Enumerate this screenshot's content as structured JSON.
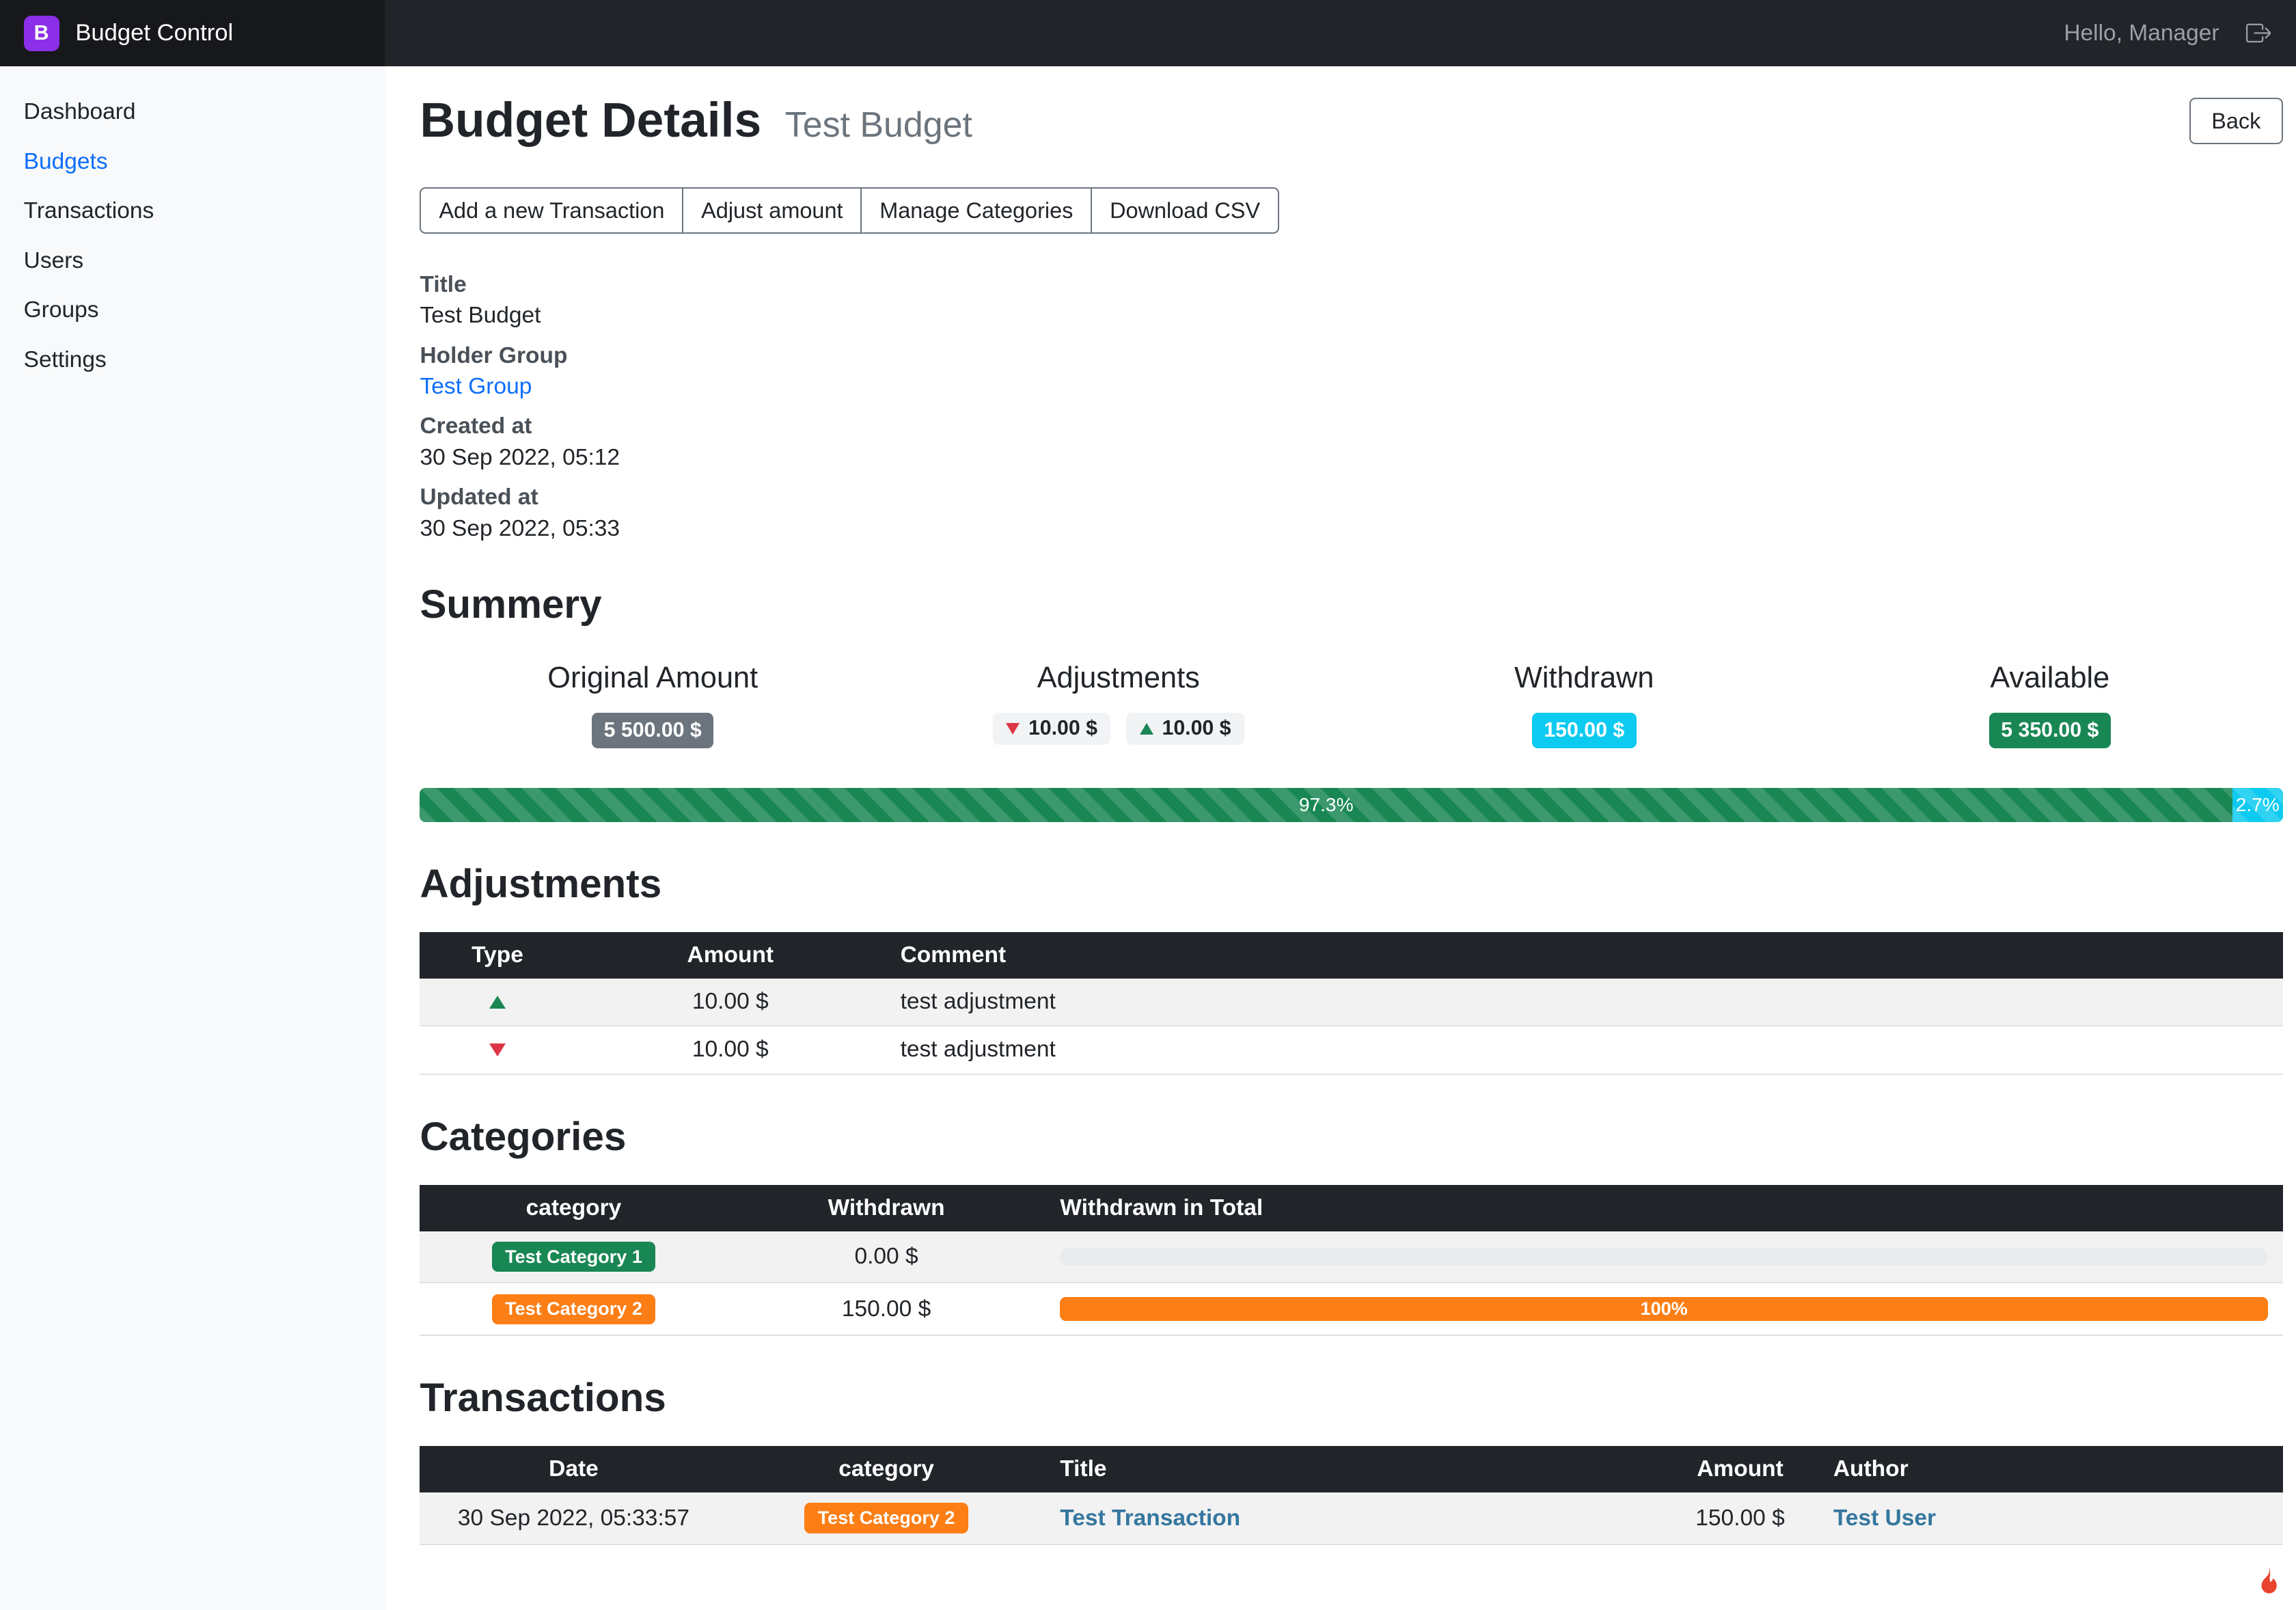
{
  "colors": {
    "brand_purple": "#8b2fe8",
    "primary_link": "#0d6efd",
    "table_link": "#35779f",
    "success_green": "#198754",
    "danger_red": "#dc3545",
    "info_cyan": "#0dcaf0",
    "warning_orange": "#fd7e14",
    "secondary_gray": "#6c757d",
    "header_dark": "#212529"
  },
  "navbar": {
    "logo_letter": "B",
    "brand": "Budget Control",
    "greeting": "Hello, Manager",
    "logout_icon": "box-arrow-right"
  },
  "sidebar": {
    "items": [
      {
        "label": "Dashboard",
        "active": false
      },
      {
        "label": "Budgets",
        "active": true
      },
      {
        "label": "Transactions",
        "active": false
      },
      {
        "label": "Users",
        "active": false
      },
      {
        "label": "Groups",
        "active": false
      },
      {
        "label": "Settings",
        "active": false
      }
    ]
  },
  "page": {
    "title": "Budget Details",
    "subtitle": "Test Budget",
    "back_button": "Back"
  },
  "actions": {
    "add_transaction": "Add a new Transaction",
    "adjust_amount": "Adjust amount",
    "manage_categories": "Manage Categories",
    "download_csv": "Download CSV"
  },
  "details": [
    {
      "label": "Title",
      "value": "Test Budget"
    },
    {
      "label": "Holder Group",
      "value": "Test Group"
    },
    {
      "label": "Created at",
      "value": "30 Sep 2022, 05:12"
    },
    {
      "label": "Updated at",
      "value": "30 Sep 2022, 05:33"
    }
  ],
  "summary": {
    "heading": "Summery",
    "original": {
      "label": "Original Amount",
      "value": "5 500.00 $",
      "color": "#6c757d"
    },
    "adjustments": {
      "label": "Adjustments",
      "decrease": "10.00 $",
      "increase": "10.00 $"
    },
    "withdrawn": {
      "label": "Withdrawn",
      "value": "150.00 $",
      "color": "#0dcaf0"
    },
    "available": {
      "label": "Available",
      "value": "5 350.00 $",
      "color": "#198754"
    },
    "progress": [
      {
        "label": "97.3%",
        "pct": 97.3,
        "color": "#198754"
      },
      {
        "label": "2.7%",
        "pct": 2.7,
        "color": "#0dcaf0"
      }
    ]
  },
  "adjustments_table": {
    "heading": "Adjustments",
    "columns": [
      "Type",
      "Amount",
      "Comment"
    ],
    "rows": [
      {
        "type": "increase",
        "amount": "10.00 $",
        "comment": "test adjustment"
      },
      {
        "type": "decrease",
        "amount": "10.00 $",
        "comment": "test adjustment"
      }
    ]
  },
  "categories_table": {
    "heading": "Categories",
    "columns": [
      "category",
      "Withdrawn",
      "Withdrawn in Total"
    ],
    "rows": [
      {
        "name": "Test Category 1",
        "badge_color": "#198754",
        "withdrawn": "0.00 $",
        "pct": 0,
        "pct_label": ""
      },
      {
        "name": "Test Category 2",
        "badge_color": "#fd7e14",
        "withdrawn": "150.00 $",
        "pct": 100,
        "pct_label": "100%",
        "bar_color": "#fd7e14"
      }
    ]
  },
  "transactions_table": {
    "heading": "Transactions",
    "columns": [
      "Date",
      "category",
      "Title",
      "Amount",
      "Author"
    ],
    "rows": [
      {
        "date": "30 Sep 2022, 05:33:57",
        "category": "Test Category 2",
        "category_color": "#fd7e14",
        "title": "Test Transaction",
        "amount": "150.00 $",
        "author": "Test User"
      }
    ]
  },
  "footer": {
    "framework_icon": "codeigniter-flame"
  }
}
